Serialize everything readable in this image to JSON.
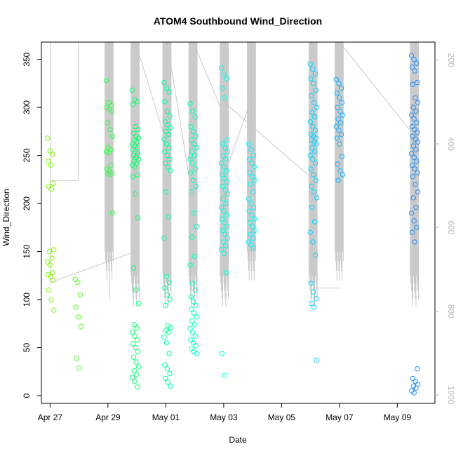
{
  "chart_data": {
    "type": "scatter",
    "title": "ATOM4 Southbound Wind_Direction",
    "xlabel": "Date",
    "ylabel": "Wind_Direction",
    "xlim_days": [
      -0.3,
      13.3
    ],
    "ylim": [
      -8,
      368
    ],
    "y2lim": [
      1020,
      157
    ],
    "x_ticks": [
      {
        "label": "Apr 27",
        "day": 0
      },
      {
        "label": "Apr 29",
        "day": 2
      },
      {
        "label": "May 01",
        "day": 4
      },
      {
        "label": "May 03",
        "day": 6
      },
      {
        "label": "May 05",
        "day": 8
      },
      {
        "label": "May 07",
        "day": 10
      },
      {
        "label": "May 09",
        "day": 12
      }
    ],
    "y_ticks": [
      0,
      50,
      100,
      150,
      200,
      250,
      300,
      350
    ],
    "y2_ticks": [
      200,
      400,
      600,
      800,
      1000
    ],
    "point_color_ramp": [
      "#7cfc00",
      "#00ff7f",
      "#00ffff",
      "#1e90ff"
    ],
    "line_color": "#c8c8c8",
    "clusters": [
      {
        "x": 0.02,
        "values": [
          268,
          255,
          251,
          244,
          240,
          221,
          218,
          215,
          152,
          150,
          143,
          139,
          136,
          128,
          126,
          124,
          120,
          110,
          100,
          89
        ]
      },
      {
        "x": 0.98,
        "values": [
          121,
          118,
          105,
          92,
          82,
          72,
          39,
          29
        ]
      },
      {
        "x": 2.05,
        "values": [
          328,
          305,
          302,
          300,
          298,
          296,
          284,
          277,
          270,
          258,
          256,
          254,
          253,
          240,
          236,
          234,
          232,
          231,
          230,
          190
        ]
      },
      {
        "x": 2.95,
        "values": [
          318,
          308,
          306,
          303,
          280,
          277,
          273,
          270,
          268,
          266,
          264,
          262,
          260,
          258,
          256,
          254,
          252,
          250,
          248,
          246,
          244,
          242,
          240,
          238,
          230,
          228,
          210,
          185,
          133,
          110,
          96,
          74,
          70,
          66,
          62,
          58,
          54,
          50,
          46,
          40,
          35,
          30,
          26,
          22,
          19,
          15,
          9
        ]
      },
      {
        "x": 4.05,
        "values": [
          326,
          320,
          316,
          306,
          296,
          291,
          285,
          282,
          279,
          275,
          272,
          267,
          262,
          258,
          254,
          250,
          246,
          242,
          238,
          234,
          212,
          186,
          164,
          124,
          118,
          112,
          105,
          100,
          94,
          73,
          71,
          68,
          66,
          61,
          55,
          44,
          32,
          28,
          23,
          18,
          14,
          10
        ]
      },
      {
        "x": 4.95,
        "values": [
          304,
          296,
          290,
          280,
          275,
          270,
          266,
          262,
          258,
          254,
          250,
          246,
          242,
          236,
          232,
          224,
          218,
          212,
          190,
          176,
          165,
          145,
          136,
          117,
          110,
          103,
          98,
          94,
          90,
          86,
          82,
          78,
          74,
          70,
          66,
          62,
          58,
          55,
          52,
          49,
          46,
          44
        ]
      },
      {
        "x": 6.03,
        "values": [
          341,
          335,
          330,
          320,
          310,
          266,
          262,
          258,
          254,
          250,
          246,
          242,
          238,
          234,
          230,
          226,
          222,
          218,
          214,
          210,
          205,
          200,
          196,
          192,
          188,
          184,
          180,
          176,
          172,
          168,
          164,
          160,
          156,
          152,
          148,
          128,
          44,
          21
        ]
      },
      {
        "x": 6.97,
        "values": [
          262,
          256,
          250,
          246,
          242,
          238,
          232,
          228,
          224,
          220,
          212,
          205,
          200,
          196,
          192,
          188,
          184,
          180,
          176,
          172,
          168,
          164,
          160,
          157,
          154
        ]
      },
      {
        "x": 9.1,
        "values": [
          345,
          340,
          335,
          330,
          325,
          318,
          312,
          305,
          300,
          295,
          290,
          285,
          280,
          276,
          272,
          270,
          268,
          266,
          264,
          262,
          258,
          254,
          250,
          246,
          242,
          236,
          230,
          224,
          218,
          212,
          206,
          196,
          181,
          170,
          160,
          146,
          117,
          108,
          101,
          96,
          92,
          37
        ]
      },
      {
        "x": 10.0,
        "values": [
          329,
          325,
          320,
          315,
          310,
          305,
          300,
          296,
          292,
          288,
          284,
          280,
          276,
          272,
          268,
          262,
          249,
          241,
          234,
          230,
          224
        ]
      },
      {
        "x": 12.6,
        "values": [
          354,
          350,
          346,
          342,
          338,
          326,
          324,
          310,
          305,
          300,
          296,
          292,
          288,
          284,
          280,
          277,
          274,
          270,
          267,
          264,
          260,
          256,
          252,
          248,
          244,
          240,
          236,
          232,
          228,
          220,
          212,
          206,
          196,
          190,
          182,
          175,
          170,
          160,
          28,
          18,
          15,
          12,
          10,
          8,
          5,
          3
        ]
      }
    ]
  }
}
